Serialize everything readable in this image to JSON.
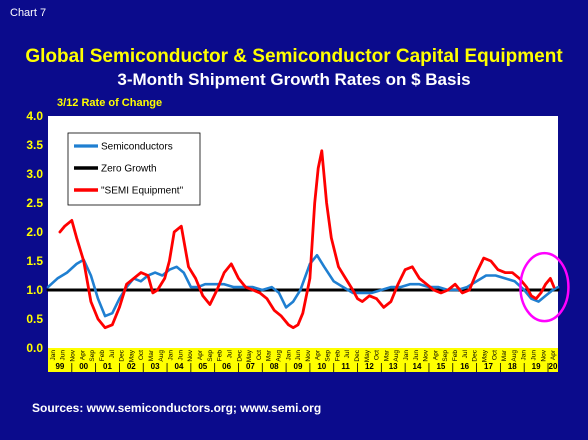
{
  "slide": {
    "chart_label": "Chart 7",
    "title": "Global Semiconductor & Semiconductor Capital Equipment",
    "subtitle": "3-Month Shipment Growth Rates on $ Basis",
    "source": "Sources: www.semiconductors.org; www.semi.org"
  },
  "colors": {
    "background": "#0b0b8c",
    "title": "#ffff00",
    "plot_background": "#ffffff",
    "axis_strip": "#ffff00",
    "semiconductors": "#1f7fd1",
    "zero_growth": "#000000",
    "semi_equipment": "#ff0000",
    "highlight_circle": "#ff00ff"
  },
  "chart_data": {
    "type": "line",
    "ylabel": "3/12 Rate of Change",
    "ylim": [
      0.0,
      4.0
    ],
    "yticks": [
      "0.0",
      "0.5",
      "1.0",
      "1.5",
      "2.0",
      "2.5",
      "3.0",
      "3.5",
      "4.0"
    ],
    "xlim": [
      1999.0,
      2020.42
    ],
    "month_ticks": [
      "Jan",
      "Jun",
      "Nov",
      "Apr",
      "Sep",
      "Feb",
      "Jul",
      "Dec",
      "May",
      "Oct",
      "Mar",
      "Aug",
      "Jan",
      "Jun",
      "Nov",
      "Apr",
      "Sep",
      "Feb",
      "Jul",
      "Dec",
      "May",
      "Oct",
      "Mar",
      "Aug",
      "Jan",
      "Jun",
      "Nov",
      "Apr",
      "Sep",
      "Feb",
      "Jul",
      "Dec",
      "May",
      "Oct",
      "Mar",
      "Aug",
      "Jan",
      "Jun",
      "Nov",
      "Apr",
      "Sep",
      "Feb",
      "Jul",
      "Dec",
      "May",
      "Oct",
      "Mar",
      "Aug",
      "Jan",
      "Jun",
      "Nov",
      "Apr"
    ],
    "year_ticks": [
      "99",
      "00",
      "01",
      "02",
      "03",
      "04",
      "05",
      "06",
      "07",
      "08",
      "09",
      "10",
      "11",
      "12",
      "13",
      "14",
      "15",
      "16",
      "17",
      "18",
      "19",
      "20"
    ],
    "legend_position": "top-left",
    "grid": false,
    "series": [
      {
        "name": "Semiconductors",
        "x": [
          1999.0,
          1999.4,
          1999.8,
          2000.2,
          2000.5,
          2000.8,
          2001.1,
          2001.4,
          2001.7,
          2002.0,
          2002.3,
          2002.6,
          2002.9,
          2003.2,
          2003.5,
          2003.8,
          2004.1,
          2004.4,
          2004.7,
          2005.0,
          2005.3,
          2005.6,
          2006.0,
          2006.4,
          2006.8,
          2007.2,
          2007.6,
          2008.0,
          2008.4,
          2008.7,
          2009.0,
          2009.3,
          2009.6,
          2010.0,
          2010.3,
          2010.6,
          2011.0,
          2011.4,
          2011.8,
          2012.2,
          2012.6,
          2013.0,
          2013.4,
          2013.8,
          2014.2,
          2014.6,
          2015.0,
          2015.4,
          2015.8,
          2016.2,
          2016.6,
          2017.0,
          2017.4,
          2017.8,
          2018.2,
          2018.6,
          2019.0,
          2019.3,
          2019.6,
          2019.9,
          2020.2,
          2020.42
        ],
        "values": [
          1.05,
          1.2,
          1.3,
          1.45,
          1.52,
          1.25,
          0.85,
          0.55,
          0.6,
          0.85,
          1.05,
          1.2,
          1.15,
          1.25,
          1.3,
          1.25,
          1.35,
          1.4,
          1.3,
          1.05,
          1.05,
          1.1,
          1.1,
          1.1,
          1.05,
          1.05,
          1.05,
          1.0,
          1.05,
          0.95,
          0.7,
          0.8,
          1.0,
          1.45,
          1.6,
          1.4,
          1.15,
          1.05,
          0.95,
          0.95,
          0.95,
          1.0,
          1.05,
          1.05,
          1.1,
          1.1,
          1.05,
          1.05,
          1.0,
          1.0,
          1.05,
          1.15,
          1.25,
          1.25,
          1.2,
          1.15,
          1.0,
          0.85,
          0.8,
          0.9,
          1.0,
          1.05
        ]
      },
      {
        "name": "Zero Growth",
        "x": [
          1999.0,
          2020.42
        ],
        "values": [
          1.0,
          1.0
        ]
      },
      {
        "name": "\"SEMI Equipment\"",
        "x": [
          1999.5,
          1999.7,
          2000.0,
          2000.2,
          2000.5,
          2000.8,
          2001.1,
          2001.4,
          2001.7,
          2002.0,
          2002.3,
          2002.6,
          2002.9,
          2003.2,
          2003.4,
          2003.6,
          2003.9,
          2004.1,
          2004.3,
          2004.6,
          2004.9,
          2005.2,
          2005.5,
          2005.8,
          2006.1,
          2006.4,
          2006.7,
          2007.0,
          2007.3,
          2007.6,
          2007.9,
          2008.2,
          2008.5,
          2008.8,
          2009.1,
          2009.3,
          2009.5,
          2009.7,
          2010.0,
          2010.2,
          2010.35,
          2010.5,
          2010.7,
          2010.9,
          2011.2,
          2011.5,
          2011.8,
          2012.0,
          2012.2,
          2012.5,
          2012.8,
          2013.1,
          2013.4,
          2013.7,
          2014.0,
          2014.3,
          2014.6,
          2014.9,
          2015.2,
          2015.5,
          2015.8,
          2016.1,
          2016.4,
          2016.7,
          2017.0,
          2017.3,
          2017.6,
          2017.9,
          2018.2,
          2018.5,
          2018.8,
          2019.1,
          2019.3,
          2019.5,
          2019.7,
          2019.9,
          2020.1,
          2020.25
        ],
        "values": [
          2.0,
          2.1,
          2.2,
          1.9,
          1.5,
          0.8,
          0.5,
          0.35,
          0.4,
          0.7,
          1.1,
          1.2,
          1.3,
          1.25,
          0.95,
          1.0,
          1.2,
          1.5,
          2.0,
          2.1,
          1.4,
          1.2,
          0.9,
          0.75,
          1.0,
          1.3,
          1.45,
          1.2,
          1.05,
          1.0,
          0.95,
          0.85,
          0.65,
          0.55,
          0.4,
          0.35,
          0.4,
          0.6,
          1.2,
          2.5,
          3.1,
          3.4,
          2.5,
          1.9,
          1.4,
          1.2,
          1.0,
          0.85,
          0.8,
          0.9,
          0.85,
          0.7,
          0.8,
          1.1,
          1.35,
          1.4,
          1.2,
          1.1,
          1.0,
          0.95,
          1.0,
          1.1,
          0.95,
          1.0,
          1.3,
          1.55,
          1.5,
          1.35,
          1.3,
          1.3,
          1.2,
          1.05,
          0.9,
          0.85,
          0.95,
          1.1,
          1.2,
          1.05
        ]
      }
    ]
  }
}
